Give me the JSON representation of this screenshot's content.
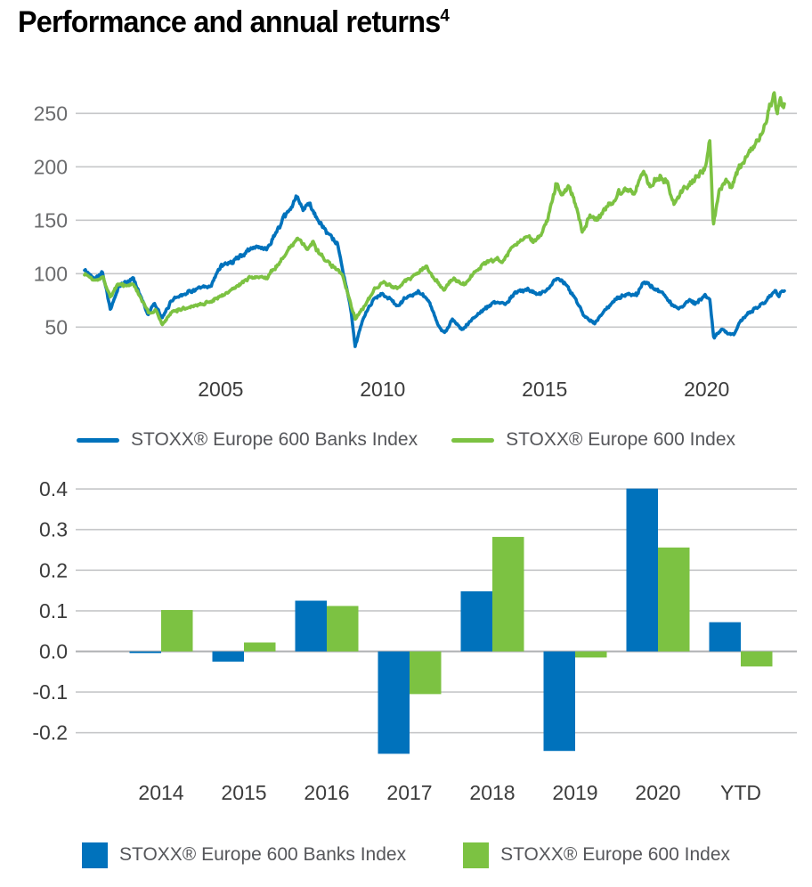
{
  "title": {
    "text": "Performance and annual returns",
    "superscript": "4"
  },
  "colors": {
    "banks": "#0072BC",
    "market": "#7CC242",
    "grid": "#c6c7c9",
    "zero_line": "#b0b2b4",
    "y_tick_text_line": "#6b6c6e",
    "tick_text": "#3c3c3c",
    "legend_text": "#55565a"
  },
  "chart_data": [
    {
      "type": "line",
      "title": "",
      "xlabel": "",
      "ylabel": "",
      "x_range": [
        2000.8,
        2022.4
      ],
      "x_ticks": [
        2005,
        2010,
        2015,
        2020
      ],
      "y_ticks": [
        250,
        200,
        150,
        100,
        50
      ],
      "grid": true,
      "legend_position": "bottom",
      "series": [
        {
          "name": "STOXX® Europe 600 Banks Index",
          "color": "#0072BC",
          "keypoints": [
            [
              2000.8,
              103
            ],
            [
              2001.1,
              96
            ],
            [
              2001.35,
              102
            ],
            [
              2001.6,
              66
            ],
            [
              2001.85,
              88
            ],
            [
              2002.1,
              92
            ],
            [
              2002.3,
              96
            ],
            [
              2002.55,
              78
            ],
            [
              2002.75,
              62
            ],
            [
              2002.95,
              72
            ],
            [
              2003.2,
              58
            ],
            [
              2003.5,
              76
            ],
            [
              2003.9,
              82
            ],
            [
              2004.3,
              86
            ],
            [
              2004.7,
              88
            ],
            [
              2005.0,
              108
            ],
            [
              2005.4,
              112
            ],
            [
              2005.8,
              120
            ],
            [
              2006.1,
              126
            ],
            [
              2006.4,
              122
            ],
            [
              2006.8,
              144
            ],
            [
              2007.1,
              158
            ],
            [
              2007.35,
              172
            ],
            [
              2007.55,
              158
            ],
            [
              2007.75,
              166
            ],
            [
              2008.0,
              150
            ],
            [
              2008.3,
              136
            ],
            [
              2008.6,
              128
            ],
            [
              2008.8,
              100
            ],
            [
              2009.0,
              70
            ],
            [
              2009.15,
              32
            ],
            [
              2009.4,
              58
            ],
            [
              2009.7,
              76
            ],
            [
              2010.0,
              82
            ],
            [
              2010.45,
              70
            ],
            [
              2010.8,
              79
            ],
            [
              2011.1,
              83
            ],
            [
              2011.45,
              74
            ],
            [
              2011.7,
              52
            ],
            [
              2011.9,
              44
            ],
            [
              2012.15,
              57
            ],
            [
              2012.45,
              47
            ],
            [
              2012.75,
              57
            ],
            [
              2013.1,
              66
            ],
            [
              2013.45,
              73
            ],
            [
              2013.75,
              71
            ],
            [
              2014.1,
              82
            ],
            [
              2014.45,
              86
            ],
            [
              2014.75,
              81
            ],
            [
              2015.05,
              84
            ],
            [
              2015.35,
              96
            ],
            [
              2015.65,
              90
            ],
            [
              2015.95,
              76
            ],
            [
              2016.25,
              60
            ],
            [
              2016.55,
              54
            ],
            [
              2016.85,
              65
            ],
            [
              2017.2,
              76
            ],
            [
              2017.55,
              81
            ],
            [
              2017.85,
              80
            ],
            [
              2018.05,
              93
            ],
            [
              2018.35,
              87
            ],
            [
              2018.65,
              82
            ],
            [
              2018.95,
              70
            ],
            [
              2019.15,
              67
            ],
            [
              2019.45,
              76
            ],
            [
              2019.65,
              72
            ],
            [
              2019.95,
              79
            ],
            [
              2020.1,
              76
            ],
            [
              2020.22,
              40
            ],
            [
              2020.45,
              48
            ],
            [
              2020.65,
              44
            ],
            [
              2020.85,
              43
            ],
            [
              2021.05,
              56
            ],
            [
              2021.3,
              63
            ],
            [
              2021.55,
              68
            ],
            [
              2021.8,
              74
            ],
            [
              2022.0,
              80
            ],
            [
              2022.12,
              86
            ],
            [
              2022.22,
              79
            ],
            [
              2022.35,
              85
            ]
          ]
        },
        {
          "name": "STOXX® Europe 600 Index",
          "color": "#7CC242",
          "keypoints": [
            [
              2000.8,
              100
            ],
            [
              2001.1,
              94
            ],
            [
              2001.35,
              98
            ],
            [
              2001.6,
              79
            ],
            [
              2001.85,
              90
            ],
            [
              2002.1,
              89
            ],
            [
              2002.3,
              90
            ],
            [
              2002.6,
              74
            ],
            [
              2002.8,
              62
            ],
            [
              2003.0,
              66
            ],
            [
              2003.2,
              52
            ],
            [
              2003.5,
              64
            ],
            [
              2003.9,
              68
            ],
            [
              2004.3,
              71
            ],
            [
              2004.7,
              74
            ],
            [
              2005.0,
              79
            ],
            [
              2005.4,
              86
            ],
            [
              2006.0,
              98
            ],
            [
              2006.4,
              95
            ],
            [
              2006.8,
              110
            ],
            [
              2007.15,
              124
            ],
            [
              2007.45,
              133
            ],
            [
              2007.65,
              124
            ],
            [
              2007.85,
              129
            ],
            [
              2008.1,
              116
            ],
            [
              2008.45,
              108
            ],
            [
              2008.75,
              98
            ],
            [
              2008.95,
              78
            ],
            [
              2009.15,
              58
            ],
            [
              2009.45,
              70
            ],
            [
              2009.75,
              84
            ],
            [
              2010.05,
              93
            ],
            [
              2010.45,
              86
            ],
            [
              2010.8,
              95
            ],
            [
              2011.1,
              101
            ],
            [
              2011.35,
              106
            ],
            [
              2011.7,
              91
            ],
            [
              2011.9,
              85
            ],
            [
              2012.2,
              96
            ],
            [
              2012.5,
              91
            ],
            [
              2012.8,
              100
            ],
            [
              2013.1,
              109
            ],
            [
              2013.45,
              114
            ],
            [
              2013.7,
              111
            ],
            [
              2014.05,
              128
            ],
            [
              2014.35,
              133
            ],
            [
              2014.65,
              131
            ],
            [
              2014.9,
              138
            ],
            [
              2015.1,
              150
            ],
            [
              2015.35,
              184
            ],
            [
              2015.55,
              172
            ],
            [
              2015.75,
              181
            ],
            [
              2015.95,
              166
            ],
            [
              2016.15,
              141
            ],
            [
              2016.4,
              154
            ],
            [
              2016.6,
              150
            ],
            [
              2016.9,
              162
            ],
            [
              2017.2,
              172
            ],
            [
              2017.45,
              181
            ],
            [
              2017.75,
              176
            ],
            [
              2018.05,
              196
            ],
            [
              2018.25,
              184
            ],
            [
              2018.55,
              191
            ],
            [
              2018.8,
              186
            ],
            [
              2019.0,
              164
            ],
            [
              2019.3,
              181
            ],
            [
              2019.55,
              186
            ],
            [
              2019.75,
              193
            ],
            [
              2019.95,
              199
            ],
            [
              2020.1,
              224
            ],
            [
              2020.2,
              146
            ],
            [
              2020.4,
              177
            ],
            [
              2020.6,
              186
            ],
            [
              2020.75,
              179
            ],
            [
              2020.9,
              194
            ],
            [
              2021.05,
              201
            ],
            [
              2021.3,
              212
            ],
            [
              2021.55,
              222
            ],
            [
              2021.8,
              240
            ],
            [
              2022.0,
              262
            ],
            [
              2022.08,
              271
            ],
            [
              2022.18,
              251
            ],
            [
              2022.28,
              267
            ],
            [
              2022.35,
              258
            ]
          ]
        }
      ]
    },
    {
      "type": "bar",
      "title": "",
      "categories": [
        "2014",
        "2015",
        "2016",
        "2017",
        "2018",
        "2019",
        "2020",
        "YTD"
      ],
      "y_tick_labels": [
        "0.4",
        "0.3",
        "0.2",
        "0.1",
        "0.0",
        "-0.1",
        "-0.2"
      ],
      "ylim": [
        -0.28,
        0.44
      ],
      "grid": true,
      "legend_position": "bottom",
      "series": [
        {
          "name": "STOXX® Europe 600 Banks Index",
          "color": "#0072BC",
          "values": [
            -0.004,
            -0.025,
            0.125,
            -0.252,
            0.148,
            -0.245,
            0.401,
            0.072
          ]
        },
        {
          "name": "STOXX® Europe 600 Index",
          "color": "#7CC242",
          "values": [
            0.102,
            0.022,
            0.112,
            -0.105,
            0.282,
            -0.015,
            0.256,
            -0.037
          ]
        }
      ]
    }
  ]
}
